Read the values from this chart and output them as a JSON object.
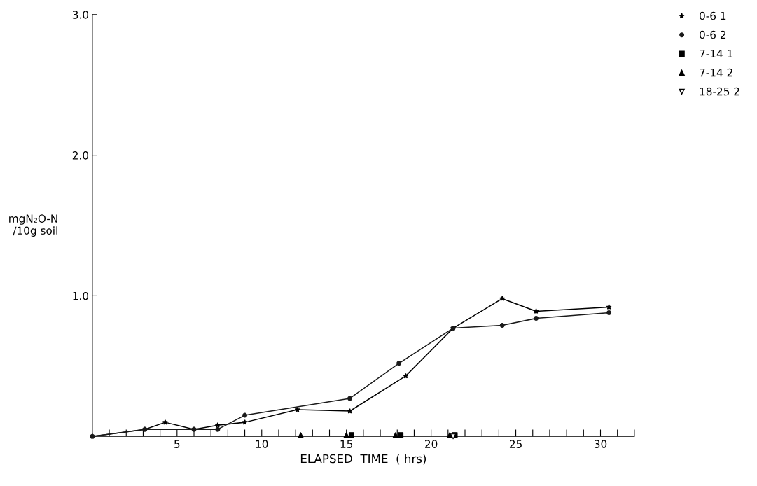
{
  "chart_data": {
    "type": "line",
    "xlabel": "ELAPSED  TIME  ( hrs)",
    "ylabel": "mgN₂O-N\n/10g soil",
    "xlim": [
      0,
      32
    ],
    "ylim": [
      0,
      3
    ],
    "xticks": [
      {
        "value": 1,
        "label": null
      },
      {
        "value": 2,
        "label": null
      },
      {
        "value": 3,
        "label": null
      },
      {
        "value": 4,
        "label": null
      },
      5,
      {
        "value": 6,
        "label": null
      },
      {
        "value": 7,
        "label": null
      },
      {
        "value": 8,
        "label": null
      },
      {
        "value": 9,
        "label": null
      },
      10,
      {
        "value": 11,
        "label": null
      },
      {
        "value": 12,
        "label": null
      },
      {
        "value": 13,
        "label": null
      },
      {
        "value": 14,
        "label": null
      },
      15,
      {
        "value": 16,
        "label": null
      },
      {
        "value": 17,
        "label": null
      },
      {
        "value": 18,
        "label": null
      },
      {
        "value": 19,
        "label": null
      },
      20,
      {
        "value": 21,
        "label": null
      },
      {
        "value": 22,
        "label": null
      },
      {
        "value": 23,
        "label": null
      },
      {
        "value": 24,
        "label": null
      },
      25,
      {
        "value": 26,
        "label": null
      },
      {
        "value": 27,
        "label": null
      },
      {
        "value": 28,
        "label": null
      },
      {
        "value": 29,
        "label": null
      },
      30,
      {
        "value": 31,
        "label": null
      },
      {
        "value": 32,
        "label": null
      }
    ],
    "yticks": [
      {
        "value": 1,
        "label": "1.0"
      },
      {
        "value": 2,
        "label": "2.0"
      },
      {
        "value": 3,
        "label": "3.0"
      }
    ],
    "grid": false,
    "legend": "top right",
    "series": [
      {
        "name": "0-6 1",
        "color": "#000000",
        "marker": "star",
        "x": [
          0,
          3.1,
          4.3,
          6.0,
          7.4,
          9.0,
          12.1,
          15.2,
          18.5,
          21.3,
          24.2,
          26.2,
          30.5
        ],
        "values": [
          0,
          0.05,
          0.1,
          0.05,
          0.08,
          0.1,
          0.19,
          0.18,
          0.43,
          0.77,
          0.98,
          0.89,
          0.92
        ]
      },
      {
        "name": "0-6 2",
        "color": "#1a1a1a",
        "marker": "circle",
        "x": [
          0,
          3.1,
          6.0,
          7.4,
          9.0,
          15.2,
          18.1,
          21.3,
          24.2,
          26.2,
          30.5
        ],
        "values": [
          0,
          0.05,
          0.05,
          0.05,
          0.15,
          0.27,
          0.52,
          0.77,
          0.79,
          0.84,
          0.88
        ]
      },
      {
        "name": "7-14 1",
        "type": "scatter",
        "color": "#000000",
        "marker": "square",
        "x": [
          15.3,
          18.2,
          21.4
        ],
        "values": [
          0.01,
          0.01,
          0.01
        ]
      },
      {
        "name": "7-14 2",
        "type": "scatter",
        "color": "#000000",
        "marker": "triangle",
        "x": [
          12.3,
          15.0,
          17.9,
          21.1
        ],
        "values": [
          0.01,
          0.01,
          0.01,
          0.01
        ]
      },
      {
        "name": "18-25 2",
        "type": "scatter",
        "color": "#000000",
        "marker": "triangle_down",
        "x": [
          21.3
        ],
        "values": [
          0
        ]
      }
    ]
  }
}
